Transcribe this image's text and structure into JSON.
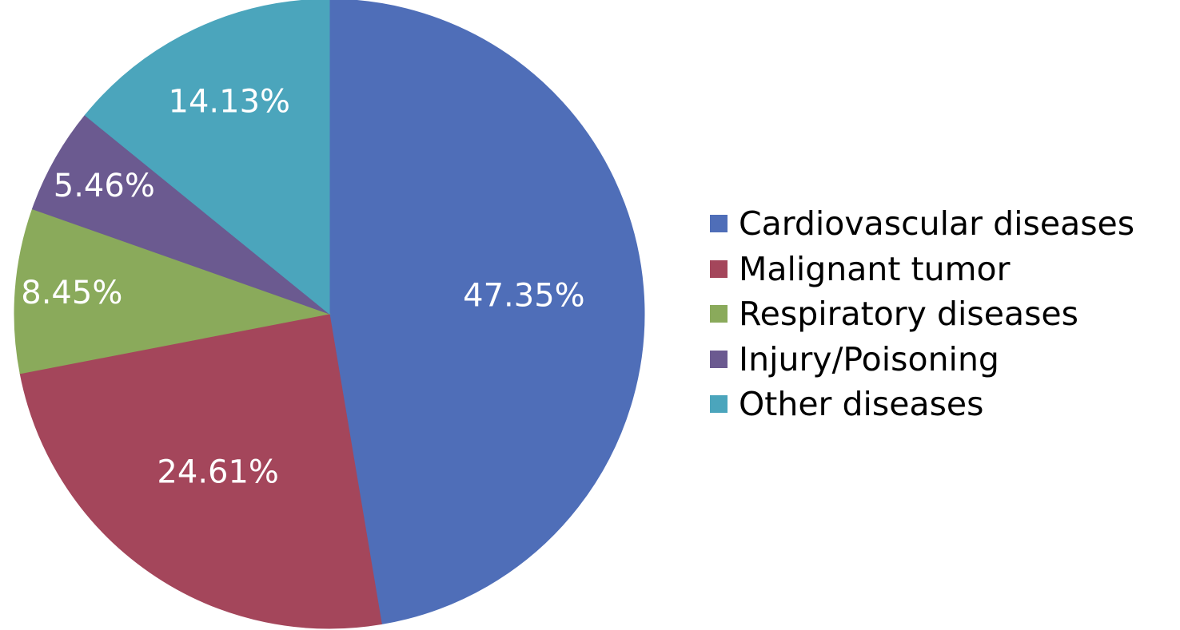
{
  "chart_data": {
    "type": "pie",
    "categories": [
      "Cardiovascular diseases",
      "Malignant tumor",
      "Respiratory diseases",
      "Injury/Poisoning",
      "Other diseases"
    ],
    "values": [
      47.35,
      24.61,
      8.45,
      5.46,
      14.13
    ],
    "data_labels": [
      "47.35%",
      "24.61%",
      "8.45%",
      "5.46%",
      "14.13%"
    ],
    "colors": [
      "#4F6EB8",
      "#A4465B",
      "#8AAA5B",
      "#6B5A90",
      "#4BA5BC"
    ],
    "start_angle": "12 o'clock",
    "direction": "clockwise",
    "legend_position": "right"
  }
}
